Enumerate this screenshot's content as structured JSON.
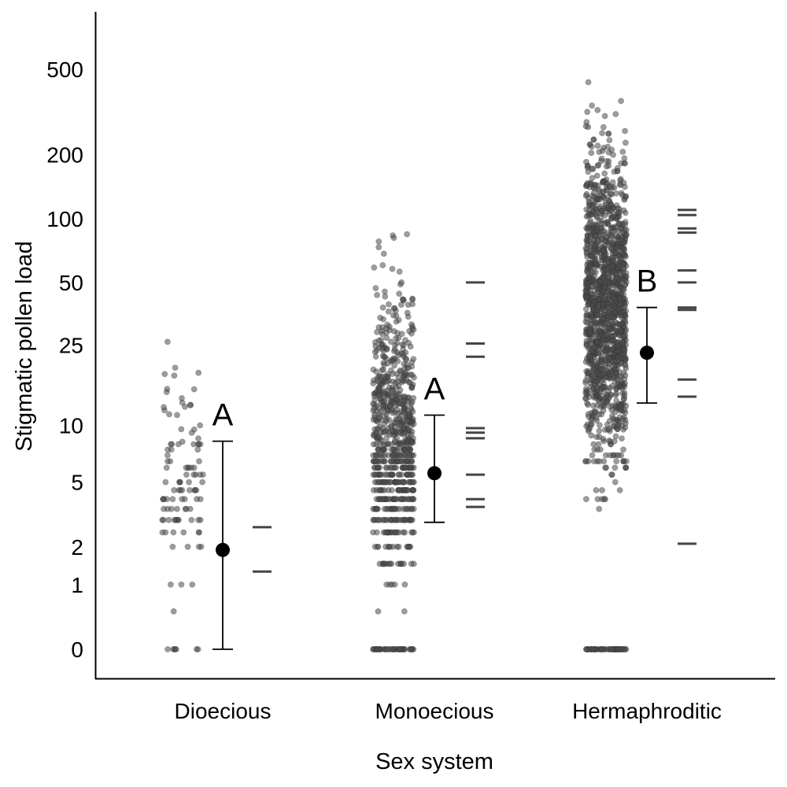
{
  "chart_data": {
    "type": "scatter",
    "xlabel": "Sex system",
    "ylabel": "Stigmatic pollen load",
    "categories": [
      "Dioecious",
      "Monoecious",
      "Hermaphroditic"
    ],
    "y_scale": "log(x+1)",
    "y_ticks": [
      0,
      1,
      2,
      5,
      10,
      25,
      50,
      100,
      200,
      500
    ],
    "y_tick_labels": [
      "0",
      "1",
      "2",
      "5",
      "10",
      "25",
      "50",
      "100",
      "200",
      "500"
    ],
    "ylim": [
      0,
      800
    ],
    "grid": false,
    "legend": "none",
    "points_approx_count": [
      110,
      800,
      1500
    ],
    "estimates": [
      {
        "category": "Dioecious",
        "mean": 1.9,
        "lower": 0,
        "upper": 8.3,
        "group_letter": "A"
      },
      {
        "category": "Monoecious",
        "mean": 5.6,
        "lower": 2.9,
        "upper": 11.3,
        "group_letter": "A"
      },
      {
        "category": "Hermaphroditic",
        "mean": 23,
        "lower": 13,
        "upper": 38,
        "group_letter": "B"
      }
    ],
    "site_means": [
      {
        "category": "Dioecious",
        "values": [
          2.7,
          1.3
        ]
      },
      {
        "category": "Monoecious",
        "values": [
          50,
          25.5,
          22,
          9.7,
          9.2,
          8.6,
          5.5,
          4.0,
          3.6
        ]
      },
      {
        "category": "Hermaphroditic",
        "values": [
          110,
          104,
          90,
          86,
          57,
          50,
          38,
          37,
          17,
          14,
          2.1
        ]
      }
    ],
    "colors": {
      "points": "#4a4a4a",
      "site_means": "#444444",
      "estimate": "#000000"
    }
  }
}
